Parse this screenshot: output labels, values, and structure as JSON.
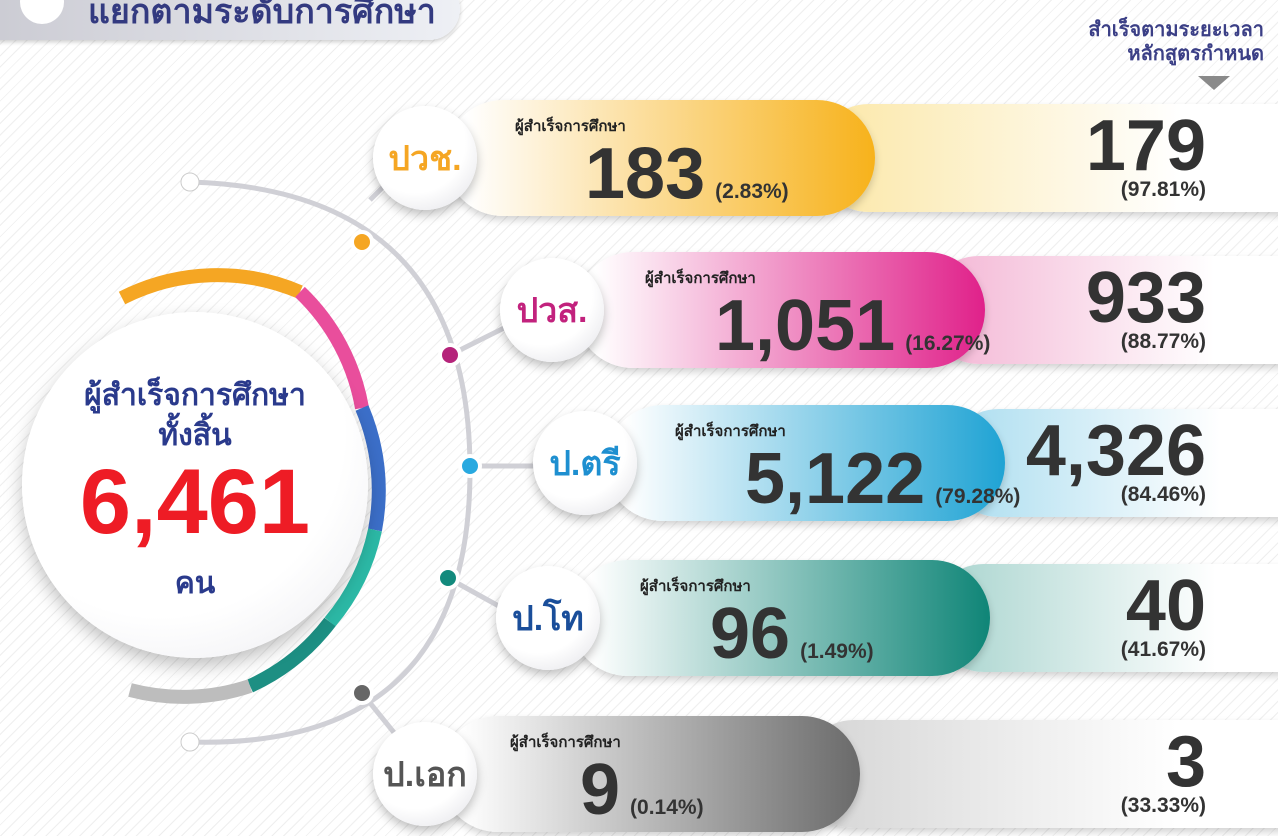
{
  "header": {
    "title": "แยกตามระดับการศึกษา",
    "right_title": [
      "สำเร็จตามระยะเวลา",
      "หลักสูตรกำหนด"
    ]
  },
  "total": {
    "label_1": "ผู้สำเร็จการศึกษา",
    "label_2": "ทั้งสิ้น",
    "count": "6,461",
    "unit": "คน"
  },
  "levels": [
    {
      "level": "ปวช.",
      "label": "ผู้สำเร็จการศึกษา",
      "count": "183",
      "percent": "(2.83%)",
      "on_time": "179",
      "on_time_percent": "(97.81%)"
    },
    {
      "level": "ปวส.",
      "label": "ผู้สำเร็จการศึกษา",
      "count": "1,051",
      "percent": "(16.27%)",
      "on_time": "933",
      "on_time_percent": "(88.77%)"
    },
    {
      "level": "ป.ตรี",
      "label": "ผู้สำเร็จการศึกษา",
      "count": "5,122",
      "percent": "(79.28%)",
      "on_time": "4,326",
      "on_time_percent": "(84.46%)"
    },
    {
      "level": "ป.โท",
      "label": "ผู้สำเร็จการศึกษา",
      "count": "96",
      "percent": "(1.49%)",
      "on_time": "40",
      "on_time_percent": "(41.67%)"
    },
    {
      "level": "ป.เอก",
      "label": "ผู้สำเร็จการศึกษา",
      "count": "9",
      "percent": "(0.14%)",
      "on_time": "3",
      "on_time_percent": "(33.33%)"
    }
  ]
}
